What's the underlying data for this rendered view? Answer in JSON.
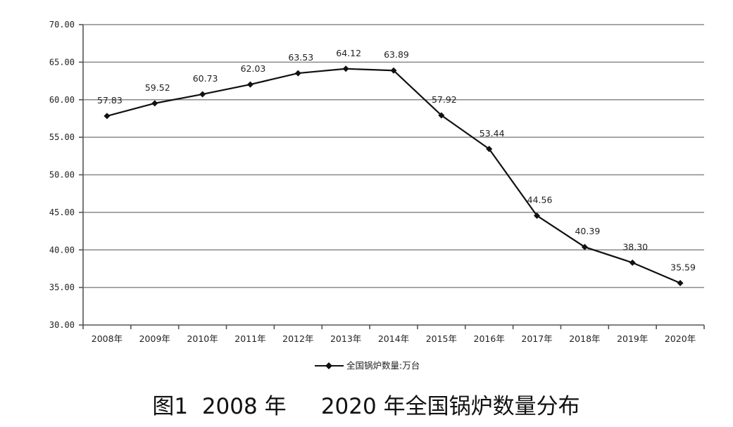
{
  "chart_data": {
    "type": "line",
    "title": "",
    "xlabel": "",
    "ylabel": "",
    "categories": [
      "2008年",
      "2009年",
      "2010年",
      "2011年",
      "2012年",
      "2013年",
      "2014年",
      "2015年",
      "2016年",
      "2017年",
      "2018年",
      "2019年",
      "2020年"
    ],
    "series": [
      {
        "name": "全国锅炉数量:万台",
        "values": [
          57.83,
          59.52,
          60.73,
          62.03,
          63.53,
          64.12,
          63.89,
          57.92,
          53.44,
          44.56,
          40.39,
          38.3,
          35.59
        ],
        "labels": [
          "57.83",
          "59.52",
          "60.73",
          "62.03",
          "63.53",
          "64.12",
          "63.89",
          "57.92",
          "53.44",
          "44.56",
          "40.39",
          "38.30",
          "35.59"
        ],
        "color": "#111111"
      }
    ],
    "ylim": [
      30,
      70
    ],
    "yticks": [
      "30.00",
      "35.00",
      "40.00",
      "45.00",
      "50.00",
      "55.00",
      "60.00",
      "65.00",
      "70.00"
    ],
    "grid": true,
    "legend": "bottom"
  },
  "caption": "图1  2008 年     2020 年全国锅炉数量分布"
}
